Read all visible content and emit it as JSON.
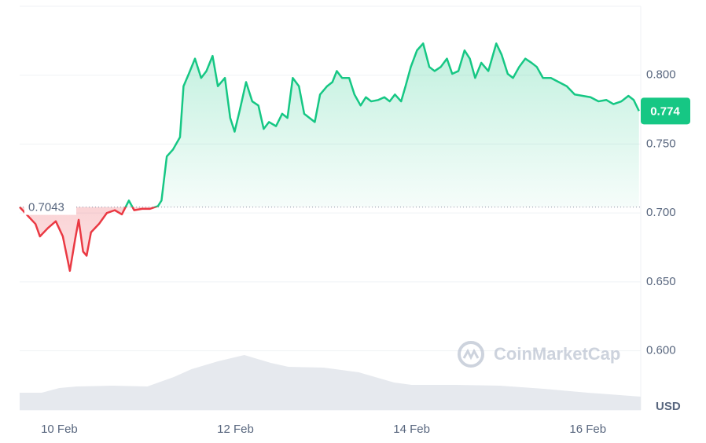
{
  "chart_data": {
    "type": "line",
    "watermark": "CoinMarketCap",
    "y_axis_label": "USD",
    "baseline": 0.7043,
    "xlim": [
      9.55,
      16.6
    ],
    "xticks": [
      {
        "value": 10,
        "label": "10 Feb"
      },
      {
        "value": 12,
        "label": "12 Feb"
      },
      {
        "value": 14,
        "label": "14 Feb"
      },
      {
        "value": 16,
        "label": "16 Feb"
      }
    ],
    "ylim": [
      0.557,
      0.85
    ],
    "yticks": [
      {
        "value": 0.6,
        "label": "0.600"
      },
      {
        "value": 0.65,
        "label": "0.650"
      },
      {
        "value": 0.7,
        "label": "0.700"
      },
      {
        "value": 0.75,
        "label": "0.750"
      },
      {
        "value": 0.8,
        "label": "0.800"
      }
    ],
    "y2lim": [
      0,
      100
    ],
    "grid": true,
    "series": [
      {
        "name": "Price",
        "color": "#16c784",
        "color_below": "#ea3943",
        "x": [
          9.55,
          9.73,
          9.78,
          9.87,
          9.96,
          10.04,
          10.12,
          10.18,
          10.22,
          10.27,
          10.31,
          10.36,
          10.45,
          10.54,
          10.63,
          10.71,
          10.79,
          10.85,
          10.94,
          11.03,
          11.12,
          11.16,
          11.22,
          11.29,
          11.37,
          11.41,
          11.47,
          11.54,
          11.61,
          11.67,
          11.74,
          11.8,
          11.88,
          11.94,
          11.99,
          12.05,
          12.12,
          12.19,
          12.26,
          12.32,
          12.38,
          12.46,
          12.53,
          12.59,
          12.65,
          12.72,
          12.78,
          12.84,
          12.9,
          12.96,
          13.04,
          13.1,
          13.15,
          13.21,
          13.29,
          13.35,
          13.42,
          13.48,
          13.54,
          13.62,
          13.69,
          13.75,
          13.81,
          13.88,
          13.93,
          13.99,
          14.06,
          14.13,
          14.2,
          14.26,
          14.33,
          14.4,
          14.46,
          14.53,
          14.6,
          14.66,
          14.72,
          14.79,
          14.87,
          14.96,
          15.02,
          15.09,
          15.15,
          15.22,
          15.29,
          15.36,
          15.42,
          15.49,
          15.58,
          15.67,
          15.76,
          15.85,
          15.94,
          16.03,
          16.12,
          16.21,
          16.29,
          16.38,
          16.46,
          16.52,
          16.58
        ],
        "values": [
          0.7043,
          0.692,
          0.683,
          0.689,
          0.694,
          0.683,
          0.658,
          0.681,
          0.695,
          0.672,
          0.669,
          0.686,
          0.692,
          0.7,
          0.702,
          0.699,
          0.709,
          0.702,
          0.703,
          0.703,
          0.705,
          0.709,
          0.741,
          0.746,
          0.755,
          0.792,
          0.801,
          0.812,
          0.798,
          0.803,
          0.814,
          0.792,
          0.798,
          0.769,
          0.759,
          0.775,
          0.795,
          0.781,
          0.778,
          0.761,
          0.766,
          0.763,
          0.772,
          0.769,
          0.798,
          0.792,
          0.772,
          0.769,
          0.766,
          0.786,
          0.792,
          0.795,
          0.803,
          0.798,
          0.798,
          0.786,
          0.778,
          0.784,
          0.781,
          0.782,
          0.784,
          0.781,
          0.786,
          0.781,
          0.792,
          0.806,
          0.818,
          0.823,
          0.806,
          0.803,
          0.806,
          0.812,
          0.801,
          0.803,
          0.818,
          0.812,
          0.798,
          0.809,
          0.803,
          0.823,
          0.815,
          0.801,
          0.798,
          0.806,
          0.812,
          0.809,
          0.806,
          0.798,
          0.798,
          0.795,
          0.792,
          0.786,
          0.785,
          0.784,
          0.781,
          0.782,
          0.779,
          0.781,
          0.785,
          0.782,
          0.774
        ]
      },
      {
        "name": "Volume",
        "color": "#e6e9ee",
        "axis": "y2",
        "x": [
          9.55,
          9.8,
          10.0,
          10.2,
          10.6,
          11.0,
          11.3,
          11.5,
          11.8,
          12.1,
          12.4,
          12.6,
          13.0,
          13.4,
          13.8,
          14.0,
          14.5,
          15.0,
          15.5,
          16.0,
          16.6
        ],
        "values": [
          22,
          22,
          28,
          30,
          31,
          30,
          42,
          52,
          62,
          70,
          60,
          55,
          54,
          48,
          35,
          32,
          32,
          31,
          27,
          22,
          17
        ]
      }
    ]
  }
}
